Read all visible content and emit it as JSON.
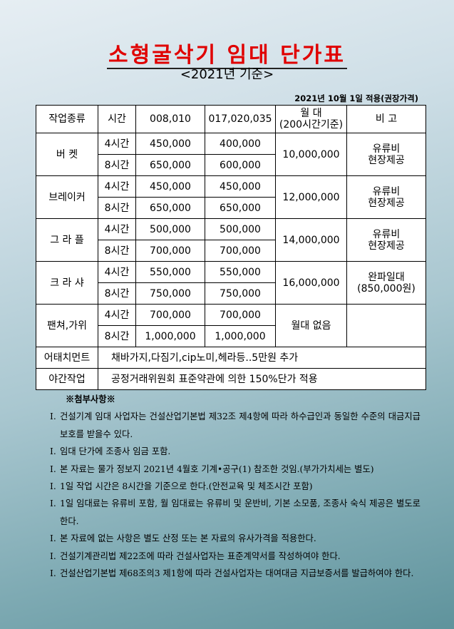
{
  "title": "소형굴삭기 임대 단가표",
  "subtitle": "<2021년 기준>",
  "date_note": "2021년 10월 1일 적용(권장가격)",
  "table": {
    "headers": [
      "작업종류",
      "시간",
      "008,010",
      "017,020,035",
      "월 대\n(200시간기준)",
      "비    고"
    ],
    "groups": [
      {
        "name": "버    켓",
        "rows": [
          [
            "4시간",
            "450,000",
            "400,000"
          ],
          [
            "8시간",
            "650,000",
            "600,000"
          ]
        ],
        "monthly": "10,000,000",
        "note": "유류비\n현장제공"
      },
      {
        "name": "브레이커",
        "rows": [
          [
            "4시간",
            "450,000",
            "450,000"
          ],
          [
            "8시간",
            "650,000",
            "650,000"
          ]
        ],
        "monthly": "12,000,000",
        "note": "유류비\n현장제공"
      },
      {
        "name": "그 라 플",
        "rows": [
          [
            "4시간",
            "500,000",
            "500,000"
          ],
          [
            "8시간",
            "700,000",
            "700,000"
          ]
        ],
        "monthly": "14,000,000",
        "note": "유류비\n현장제공"
      },
      {
        "name": "크 라 샤",
        "rows": [
          [
            "4시간",
            "550,000",
            "550,000"
          ],
          [
            "8시간",
            "750,000",
            "750,000"
          ]
        ],
        "monthly": "16,000,000",
        "note": "완파일대\n(850,000원)"
      },
      {
        "name": "팬쳐,가위",
        "rows": [
          [
            "4시간",
            "700,000",
            "700,000"
          ],
          [
            "8시간",
            "1,000,000",
            "1,000,000"
          ]
        ],
        "monthly": "월대 없음",
        "note": ""
      }
    ],
    "attachment": {
      "label": "어태치먼트",
      "value": "채바가지,다짐기,cip노미,헤라등..5만원 추가"
    },
    "night": {
      "label": "야간작업",
      "value": "공정거래위원회 표준약관에 의한 150%단가 적용"
    }
  },
  "notes": {
    "heading": "※첨부사항※",
    "bullet": "I.",
    "items": [
      "건설기계 임대 사업자는 건설산업기본법 제32조 제4항에 따라 하수급인과 동일한 수준의 대금지급 보호를 받을수 있다.",
      "임대 단가에 조종사 임금 포함.",
      "본 자료는 물가 정보지 2021년 4월호 기계•공구(1) 참조한 것임.(부가가치세는 별도)",
      "1일 작업 시간은 8시간을 기준으로 한다.(안전교육 및 체조시간 포함)",
      "1일 임대료는 유류비 포함, 월 임대료는 유류비 및 운반비, 기본 소모품, 조종사 숙식 제공은 별도로 한다.",
      "본 자료에 없는 사항은 별도 산정 또는 본 자료의 유사가격을 적용한다.",
      "건설기계관리법 제22조에 따라 건설사업자는 표준계약서를 작성하여야 한다.",
      "건설산업기본법 제68조의3 제1항에 따라 건설사업자는 대여대금 지급보증서를 발급하여야 한다."
    ]
  }
}
